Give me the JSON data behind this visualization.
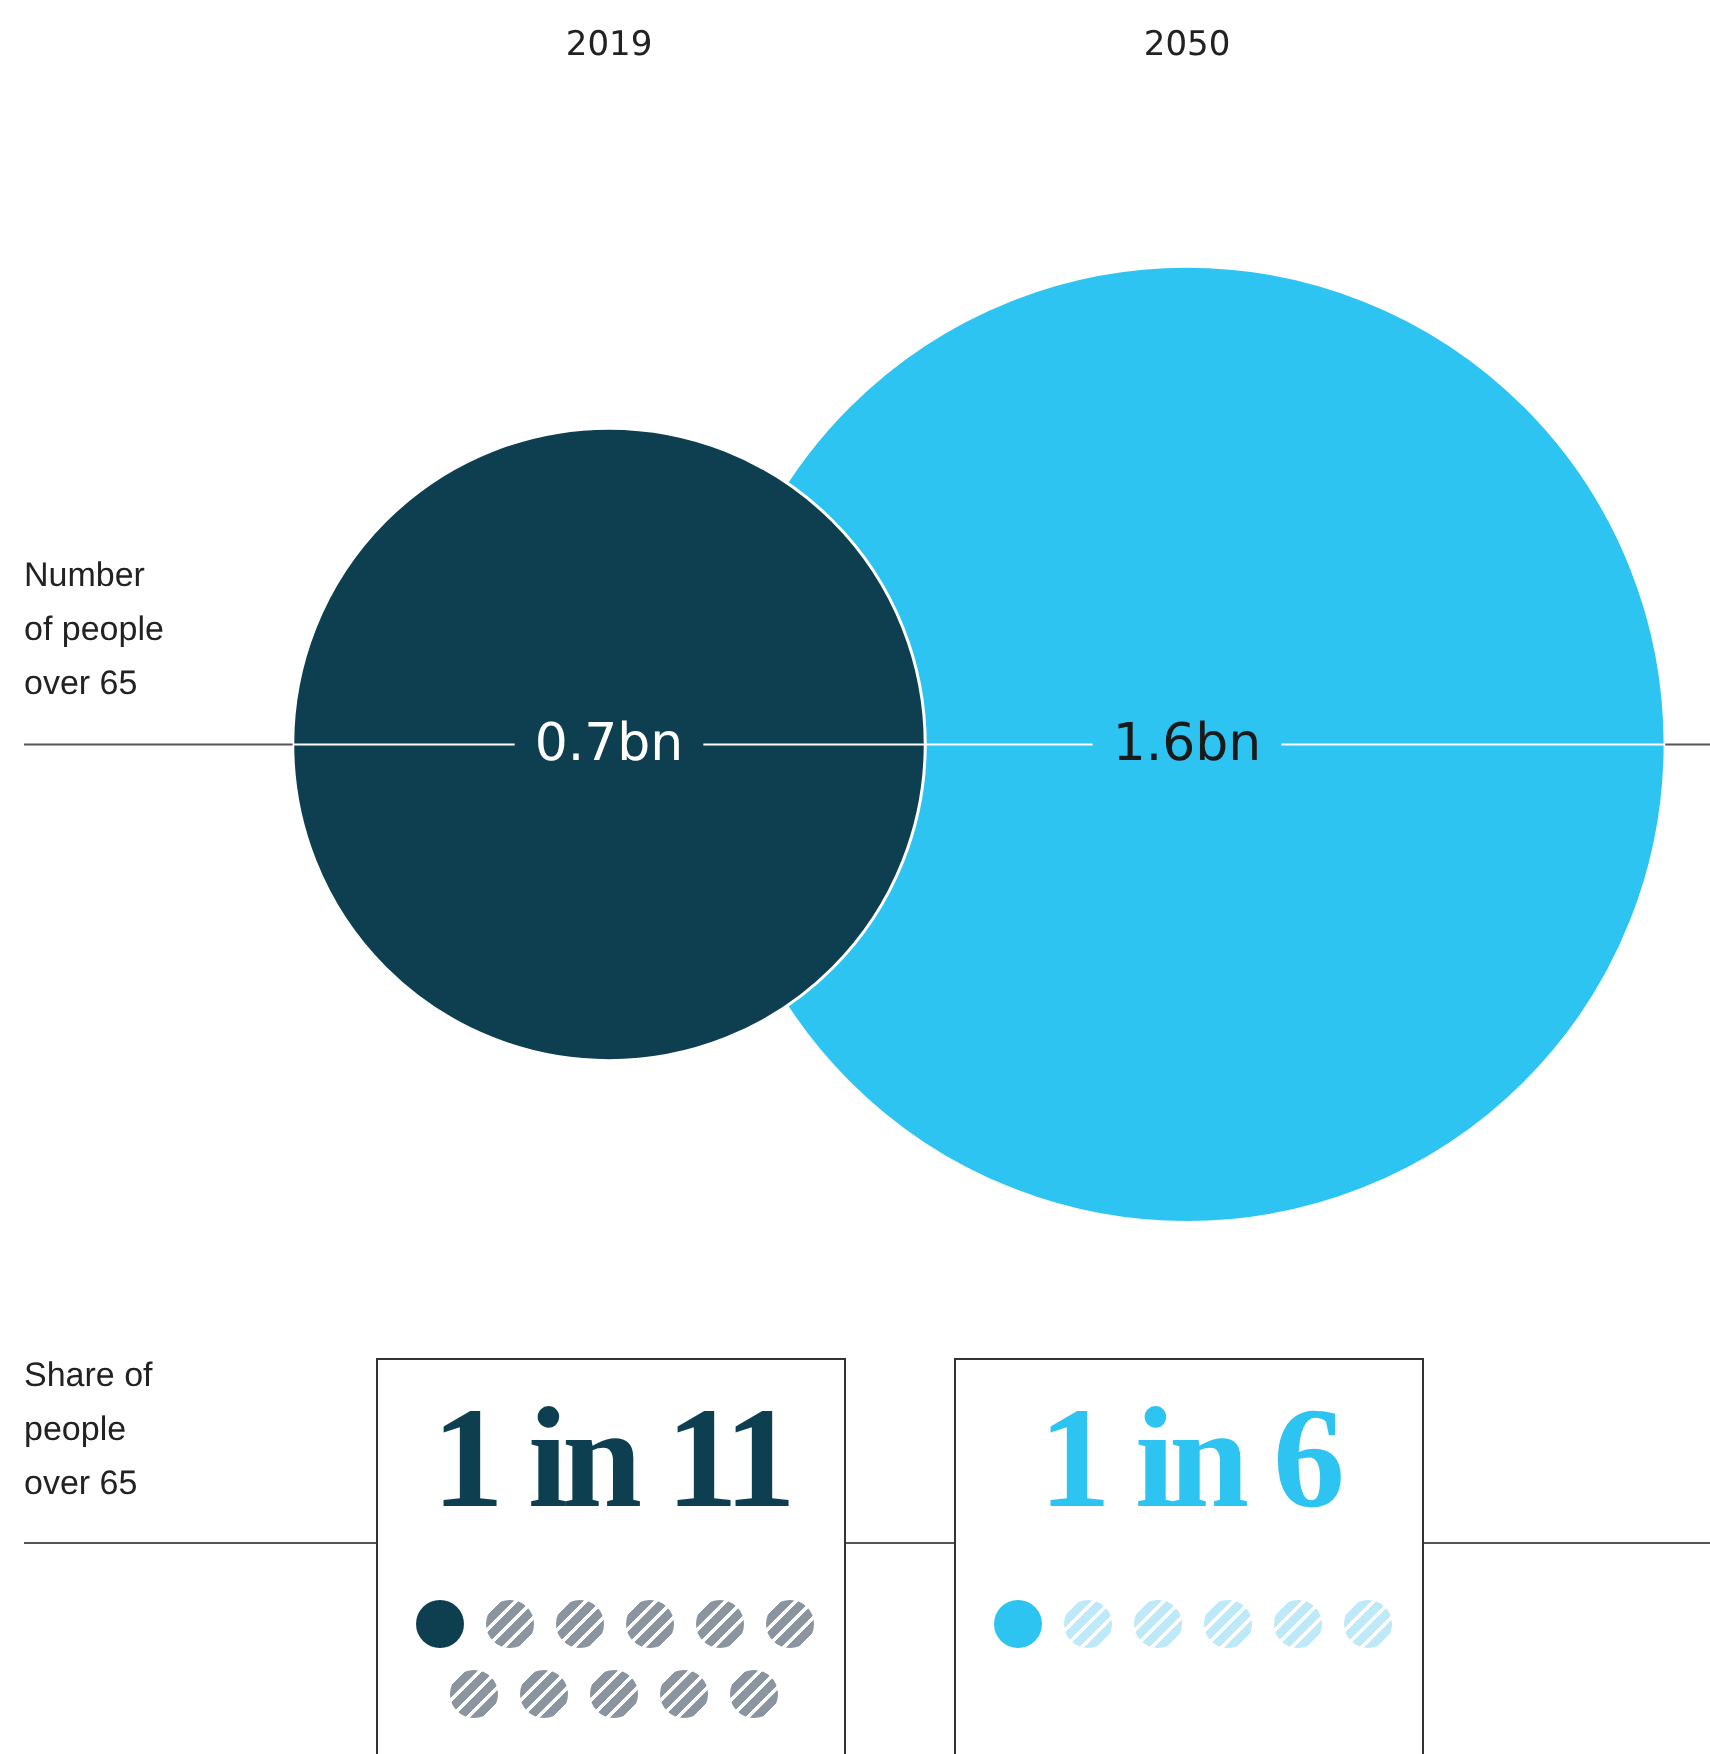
{
  "chart_data": [
    {
      "type": "other",
      "ylabel": "Number of people over 65",
      "categories": [
        "2019",
        "2050"
      ],
      "values": [
        0.7,
        1.6
      ],
      "value_labels": [
        "0.7bn",
        "1.6bn"
      ],
      "colors": [
        "#0e3f51",
        "#2ec4f2"
      ]
    },
    {
      "type": "other",
      "ylabel": "Share of people over 65",
      "values": [
        11,
        6
      ],
      "value_labels": [
        "1 in 11",
        "1 in 6"
      ],
      "colors": [
        "#0e3f51",
        "#2ec4f2"
      ]
    }
  ]
}
